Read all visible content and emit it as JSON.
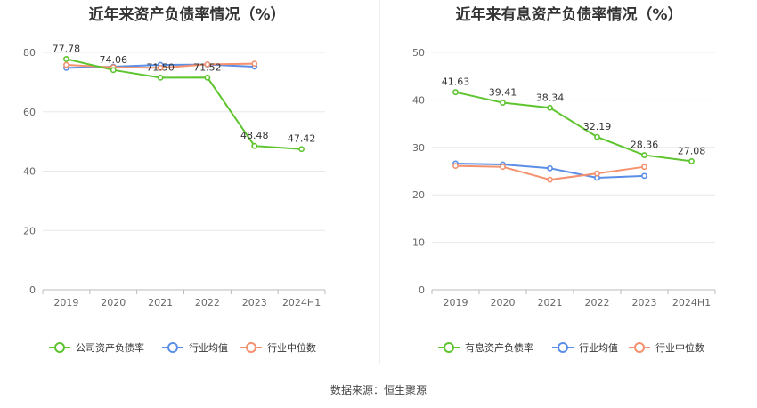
{
  "charts": [
    {
      "title": "近年来资产负债率情况（%）",
      "legend": [
        {
          "label": "公司资产负债率",
          "color": "#5ec42f"
        },
        {
          "label": "行业均值",
          "color": "#5b8ee6"
        },
        {
          "label": "行业中位数",
          "color": "#f4916e"
        }
      ]
    },
    {
      "title": "近年来有息资产负债率情况（%）",
      "legend": [
        {
          "label": "有息资产负债率",
          "color": "#5ec42f"
        },
        {
          "label": "行业均值",
          "color": "#5b8ee6"
        },
        {
          "label": "行业中位数",
          "color": "#f4916e"
        }
      ]
    }
  ],
  "source": "数据来源：恒生聚源",
  "chart_data": [
    {
      "type": "line",
      "title": "近年来资产负债率情况（%）",
      "categories": [
        "2019",
        "2020",
        "2021",
        "2022",
        "2023",
        "2024H1"
      ],
      "yticks": [
        "0",
        "20",
        "40",
        "60",
        "80"
      ],
      "ylim": [
        0,
        85
      ],
      "grid": true,
      "legend_position": "bottom",
      "series": [
        {
          "name": "公司资产负债率",
          "color": "#5ec42f",
          "values": [
            77.78,
            74.06,
            71.5,
            71.52,
            48.48,
            47.42
          ],
          "labels": [
            "77.78",
            "74.06",
            "71.50",
            "71.52",
            "48.48",
            "47.42"
          ]
        },
        {
          "name": "行业均值",
          "color": "#5b8ee6",
          "values": [
            74.8,
            75.2,
            75.8,
            75.9,
            75.2,
            null
          ]
        },
        {
          "name": "行业中位数",
          "color": "#f4916e",
          "values": [
            75.8,
            75.0,
            74.8,
            76.0,
            76.2,
            null
          ]
        }
      ]
    },
    {
      "type": "line",
      "title": "近年来有息资产负债率情况（%）",
      "categories": [
        "2019",
        "2020",
        "2021",
        "2022",
        "2023",
        "2024H1"
      ],
      "yticks": [
        "0",
        "10",
        "20",
        "30",
        "40",
        "50"
      ],
      "ylim": [
        0,
        50
      ],
      "grid": true,
      "legend_position": "bottom",
      "series": [
        {
          "name": "有息资产负债率",
          "color": "#5ec42f",
          "values": [
            41.63,
            39.41,
            38.34,
            32.19,
            28.36,
            27.08
          ],
          "labels": [
            "41.63",
            "39.41",
            "38.34",
            "32.19",
            "28.36",
            "27.08"
          ]
        },
        {
          "name": "行业均值",
          "color": "#5b8ee6",
          "values": [
            26.6,
            26.4,
            25.6,
            23.6,
            24.0,
            null
          ]
        },
        {
          "name": "行业中位数",
          "color": "#f4916e",
          "values": [
            26.1,
            25.9,
            23.2,
            24.5,
            25.9,
            null
          ]
        }
      ]
    }
  ]
}
